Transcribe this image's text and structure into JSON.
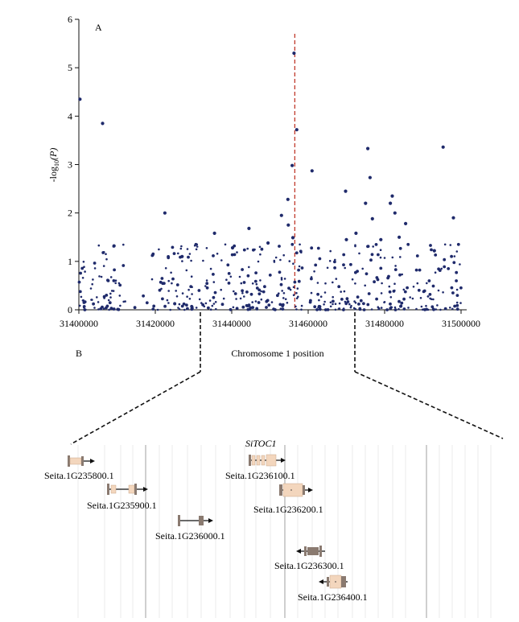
{
  "chart_data": [
    {
      "type": "scatter",
      "panel_label": "A",
      "xlabel": "Chromosome 1 position",
      "ylabel_main": "-log",
      "ylabel_sub": "10",
      "ylabel_p": "(P)",
      "xlim": [
        31400000,
        31500000
      ],
      "ylim": [
        0,
        6
      ],
      "xticks": [
        "31400000",
        "31420000",
        "31440000",
        "31460000",
        "31480000",
        "31500000"
      ],
      "yticks": [
        "0",
        "1",
        "2",
        "3",
        "4",
        "5",
        "6"
      ],
      "marker_color": "#1f2a6b",
      "threshold_color": "#c0392b",
      "threshold_x": 31456500,
      "highlights": [
        {
          "x": 31400300,
          "y": 4.35
        },
        {
          "x": 31406200,
          "y": 3.85
        },
        {
          "x": 31456300,
          "y": 5.3
        },
        {
          "x": 31457000,
          "y": 3.72
        },
        {
          "x": 31455800,
          "y": 2.98
        },
        {
          "x": 31461000,
          "y": 2.87
        },
        {
          "x": 31475600,
          "y": 3.33
        },
        {
          "x": 31495300,
          "y": 3.36
        },
        {
          "x": 31476200,
          "y": 2.73
        },
        {
          "x": 31422500,
          "y": 2.0
        },
        {
          "x": 31454700,
          "y": 2.28
        },
        {
          "x": 31469800,
          "y": 2.45
        },
        {
          "x": 31475000,
          "y": 2.2
        },
        {
          "x": 31482000,
          "y": 2.35
        },
        {
          "x": 31481500,
          "y": 2.2
        },
        {
          "x": 31453000,
          "y": 1.95
        },
        {
          "x": 31454800,
          "y": 1.75
        },
        {
          "x": 31498000,
          "y": 1.9
        },
        {
          "x": 31444500,
          "y": 1.68
        },
        {
          "x": 31476800,
          "y": 1.88
        },
        {
          "x": 31482700,
          "y": 2.0
        },
        {
          "x": 31485500,
          "y": 1.78
        },
        {
          "x": 31483800,
          "y": 1.5
        },
        {
          "x": 31435500,
          "y": 1.58
        },
        {
          "x": 31472500,
          "y": 1.58
        },
        {
          "x": 31449500,
          "y": 1.38
        },
        {
          "x": 31409200,
          "y": 1.32
        },
        {
          "x": 31470000,
          "y": 1.45
        },
        {
          "x": 31479000,
          "y": 1.45
        },
        {
          "x": 31493000,
          "y": 1.22
        },
        {
          "x": 31427000,
          "y": 1.1
        },
        {
          "x": 31440200,
          "y": 1.28
        },
        {
          "x": 31456000,
          "y": 1.49
        }
      ],
      "noise_seed": 20240517,
      "noise_count": 520
    }
  ],
  "panel_b": {
    "panel_label": "B",
    "highlight_gene": "SiTOC1",
    "genes": [
      {
        "id": "Seita.1G235800.1",
        "strand": "+"
      },
      {
        "id": "Seita.1G235900.1",
        "strand": "+"
      },
      {
        "id": "Seita.1G236000.1",
        "strand": "+"
      },
      {
        "id": "Seita.1G236100.1",
        "strand": "+"
      },
      {
        "id": "Seita.1G236200.1",
        "strand": "+"
      },
      {
        "id": "Seita.1G236300.1",
        "strand": "-"
      },
      {
        "id": "Seita.1G236400.1",
        "strand": "-"
      }
    ]
  }
}
